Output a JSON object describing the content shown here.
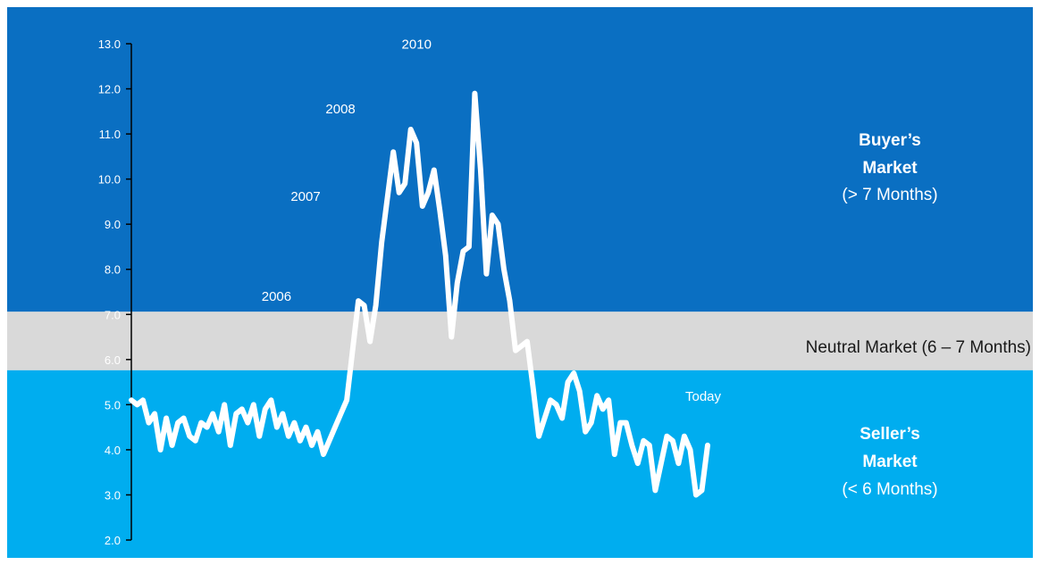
{
  "colors": {
    "buyer_zone": "#0a6fc2",
    "neutral_zone": "#d9d9d9",
    "seller_zone": "#00adef",
    "line": "#ffffff"
  },
  "zones": {
    "buyer": {
      "title_line1": "Buyer’s",
      "title_line2": "Market",
      "subtitle": "(> 7 Months)",
      "range": [
        7.0,
        13.0
      ]
    },
    "neutral": {
      "label": "Neutral Market (6 – 7 Months)",
      "range": [
        6.0,
        7.0
      ]
    },
    "seller": {
      "title_line1": "Seller’s",
      "title_line2": "Market",
      "subtitle": "(< 6 Months)",
      "range": [
        2.0,
        6.0
      ]
    }
  },
  "chart_data": {
    "type": "line",
    "title": "",
    "xlabel": "",
    "ylabel": "",
    "ylim": [
      2.0,
      13.0
    ],
    "yticks": [
      "2.0",
      "3.0",
      "4.0",
      "5.0",
      "6.0",
      "7.0",
      "8.0",
      "9.0",
      "10.0",
      "11.0",
      "12.0",
      "13.0"
    ],
    "grid": false,
    "x_index_range": [
      0,
      99
    ],
    "annotations": [
      {
        "text": "2006",
        "x": 28,
        "y": 7.3
      },
      {
        "text": "2007",
        "x": 33,
        "y": 9.6
      },
      {
        "text": "2008",
        "x": 39,
        "y": 11.1
      },
      {
        "text": "2010",
        "x": 49,
        "y": 11.9
      },
      {
        "text": "Today",
        "x": 99,
        "y": 4.1
      }
    ],
    "series": [
      {
        "values": [
          5.1,
          5.0,
          5.1,
          4.6,
          4.8,
          4.0,
          4.7,
          4.1,
          4.6,
          4.7,
          4.3,
          4.2,
          4.6,
          4.5,
          4.8,
          4.4,
          5.0,
          4.1,
          4.8,
          4.9,
          4.6,
          5.0,
          4.3,
          4.9,
          5.1,
          4.5,
          4.8,
          4.3,
          4.6,
          4.2,
          4.5,
          4.1,
          4.4,
          3.9,
          4.2,
          4.5,
          4.8,
          5.1,
          6.2,
          7.3,
          7.2,
          6.4,
          7.2,
          8.6,
          9.6,
          10.6,
          9.7,
          9.9,
          11.1,
          10.8,
          9.4,
          9.7,
          10.2,
          9.3,
          8.3,
          6.5,
          7.7,
          8.4,
          8.5,
          11.9,
          10.2,
          7.9,
          9.2,
          9.0,
          8.0,
          7.3,
          6.2,
          6.3,
          6.4,
          5.4,
          4.3,
          4.7,
          5.1,
          5.0,
          4.7,
          5.5,
          5.7,
          5.3,
          4.4,
          4.6,
          5.2,
          4.9,
          5.1,
          3.9,
          4.6,
          4.6,
          4.1,
          3.7,
          4.2,
          4.1,
          3.1,
          3.7,
          4.3,
          4.2,
          3.7,
          4.3,
          4.0,
          3.0,
          3.1,
          4.1
        ]
      }
    ]
  }
}
